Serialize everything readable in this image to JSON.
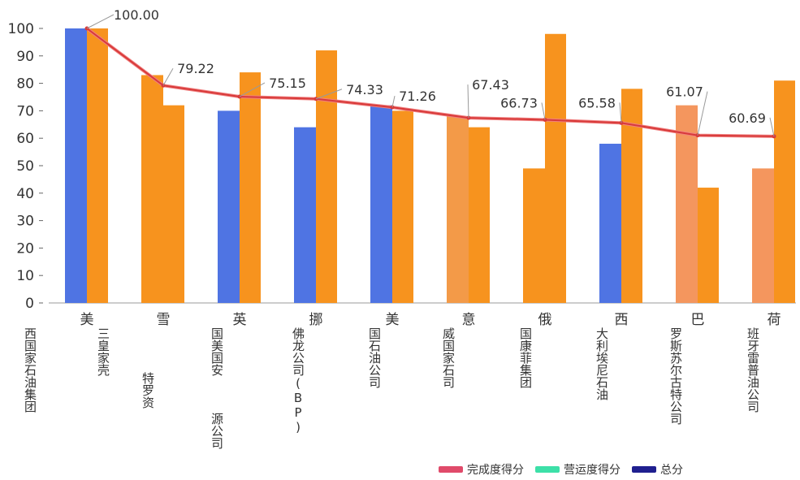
{
  "chart_data": {
    "type": "bar",
    "categories": [
      "美",
      "雪",
      "英",
      "挪",
      "美",
      "意",
      "俄",
      "西",
      "巴",
      "荷"
    ],
    "label_fragments": [
      "西国家石油集团",
      "三皇家壳",
      "特罗资",
      "国美国安",
      "源公司",
      "佛龙公司(BP)",
      "国石油公司",
      "威国家石司",
      "国康菲集团",
      "大利埃尼石油",
      "罗斯苏尔古特公司",
      "班牙雷普油公司"
    ],
    "ylim": [
      0,
      100
    ],
    "yticks": [
      0,
      10,
      20,
      30,
      40,
      50,
      60,
      70,
      80,
      90,
      100
    ],
    "grid": false,
    "legend_position": "bottom",
    "series": [
      {
        "name": "完成度得分",
        "kind": "bar",
        "values": [
          100,
          83,
          70,
          64,
          72,
          68,
          49,
          58,
          72,
          49
        ],
        "colors": [
          "#4f74e3",
          "#f7931e",
          "#4f74e3",
          "#4f74e3",
          "#4f74e3",
          "#f39a48",
          "#f7931e",
          "#4f74e3",
          "#f4965e",
          "#f4965e"
        ],
        "legend_color": "#e04a6a"
      },
      {
        "name": "营运度得分",
        "kind": "bar",
        "values": [
          100,
          72,
          84,
          92,
          70,
          64,
          98,
          78,
          42,
          81
        ],
        "colors": [
          "#f7931e",
          "#f7931e",
          "#f7931e",
          "#f7931e",
          "#f7931e",
          "#f7931e",
          "#f7931e",
          "#f7931e",
          "#f7931e",
          "#f7931e"
        ],
        "legend_color": "#3de0a8"
      },
      {
        "name": "总分",
        "kind": "line",
        "values": [
          100.0,
          79.22,
          75.15,
          74.33,
          71.26,
          67.43,
          66.73,
          65.58,
          61.07,
          60.69
        ],
        "color": "#d83a3a",
        "legend_color": "#1f1f8f"
      }
    ]
  }
}
